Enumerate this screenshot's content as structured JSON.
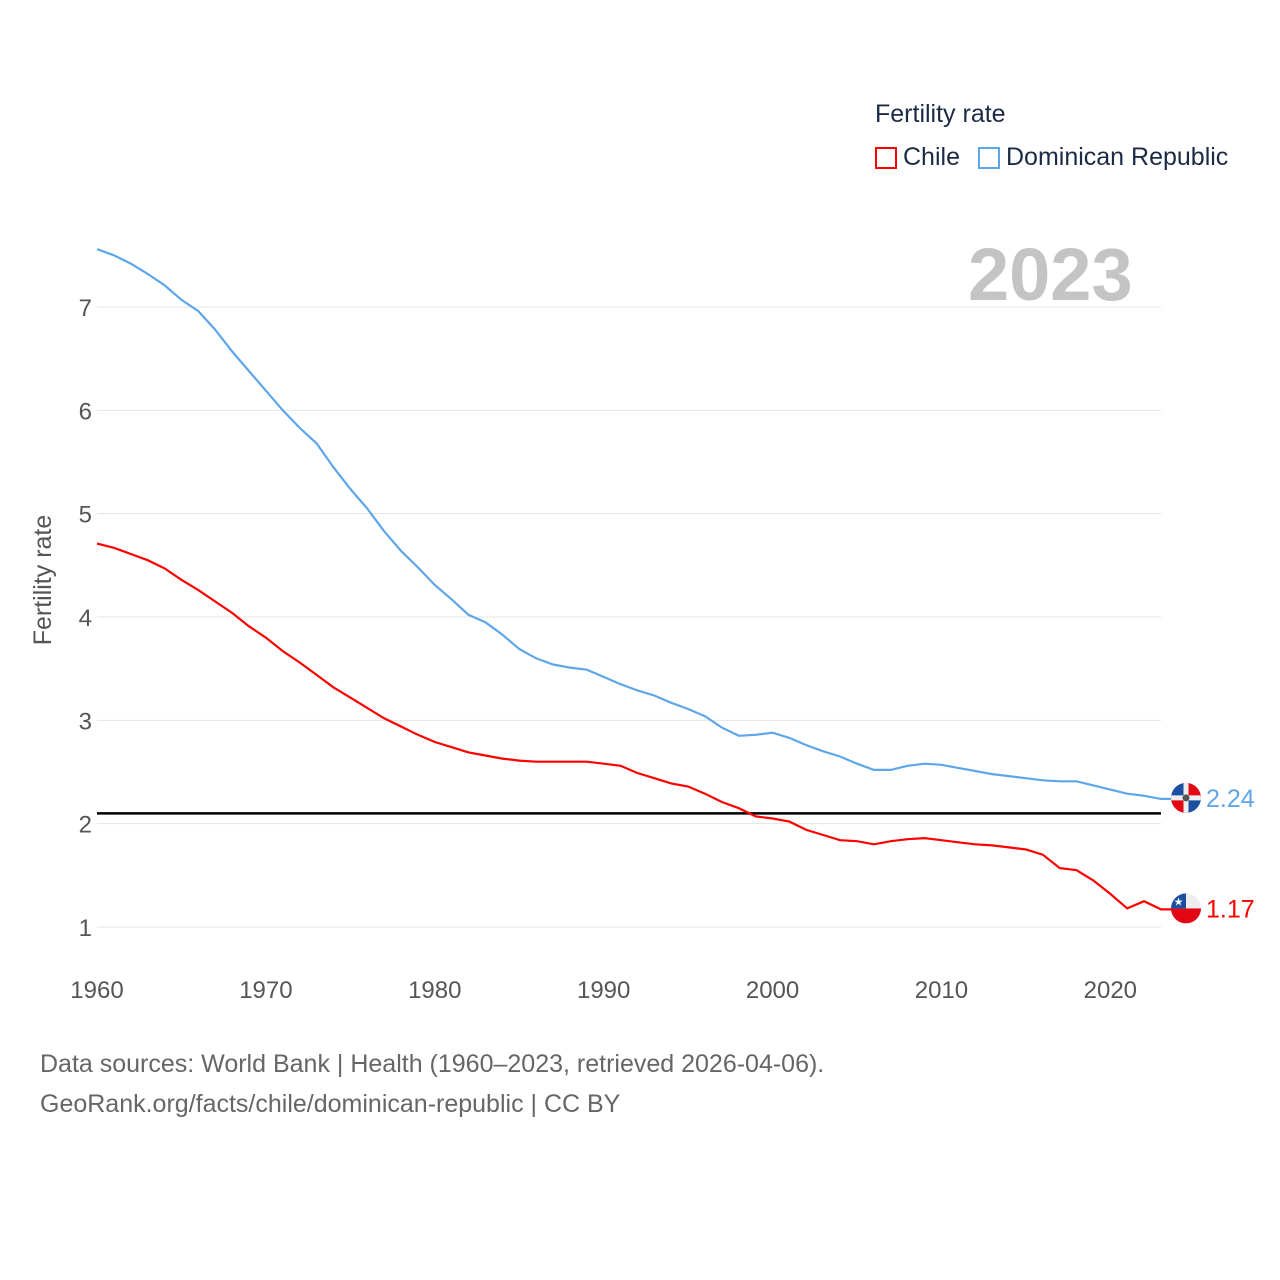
{
  "legend": {
    "title": "Fertility rate",
    "items": [
      {
        "label": "Chile",
        "color": "#ff0000"
      },
      {
        "label": "Dominican Republic",
        "color": "#5ea6ea"
      }
    ]
  },
  "year_label": "2023",
  "source": {
    "line1": "Data sources: World Bank | Health (1960–2023, retrieved 2026-04-06).",
    "line2": "GeoRank.org/facts/chile/dominican-republic | CC BY"
  },
  "chart_data": {
    "type": "line",
    "title": "",
    "xlabel": "",
    "ylabel": "Fertility rate",
    "xlim": [
      1960,
      2023
    ],
    "ylim": [
      1,
      7
    ],
    "grid": true,
    "legend_placement": "top-right",
    "x_ticks": [
      "1960",
      "1970",
      "1980",
      "1990",
      "2000",
      "2010",
      "2020"
    ],
    "y_ticks": [
      "1",
      "2",
      "3",
      "4",
      "5",
      "6",
      "7"
    ],
    "reference_line": 2.1,
    "x_start": 1960,
    "series": [
      {
        "name": "Chile",
        "color": "#ff0000",
        "end_label": "1.17",
        "values": [
          4.71,
          4.67,
          4.61,
          4.55,
          4.47,
          4.36,
          4.26,
          4.15,
          4.04,
          3.91,
          3.8,
          3.67,
          3.56,
          3.44,
          3.32,
          3.22,
          3.12,
          3.02,
          2.94,
          2.86,
          2.79,
          2.74,
          2.69,
          2.66,
          2.63,
          2.61,
          2.6,
          2.6,
          2.6,
          2.6,
          2.58,
          2.56,
          2.49,
          2.44,
          2.39,
          2.36,
          2.29,
          2.21,
          2.15,
          2.07,
          2.05,
          2.02,
          1.94,
          1.89,
          1.84,
          1.83,
          1.8,
          1.83,
          1.85,
          1.86,
          1.84,
          1.82,
          1.8,
          1.79,
          1.77,
          1.75,
          1.7,
          1.57,
          1.55,
          1.45,
          1.32,
          1.18,
          1.25,
          1.17
        ]
      },
      {
        "name": "Dominican Republic",
        "color": "#5ea6ea",
        "end_label": "2.24",
        "values": [
          7.56,
          7.5,
          7.42,
          7.32,
          7.21,
          7.07,
          6.96,
          6.78,
          6.57,
          6.38,
          6.19,
          6.0,
          5.83,
          5.68,
          5.45,
          5.24,
          5.05,
          4.83,
          4.64,
          4.48,
          4.31,
          4.17,
          4.02,
          3.95,
          3.83,
          3.69,
          3.6,
          3.54,
          3.51,
          3.49,
          3.42,
          3.35,
          3.29,
          3.24,
          3.17,
          3.11,
          3.04,
          2.93,
          2.85,
          2.86,
          2.88,
          2.83,
          2.76,
          2.7,
          2.65,
          2.58,
          2.52,
          2.52,
          2.56,
          2.58,
          2.57,
          2.54,
          2.51,
          2.48,
          2.46,
          2.44,
          2.42,
          2.41,
          2.41,
          2.37,
          2.33,
          2.29,
          2.27,
          2.24
        ]
      }
    ]
  }
}
